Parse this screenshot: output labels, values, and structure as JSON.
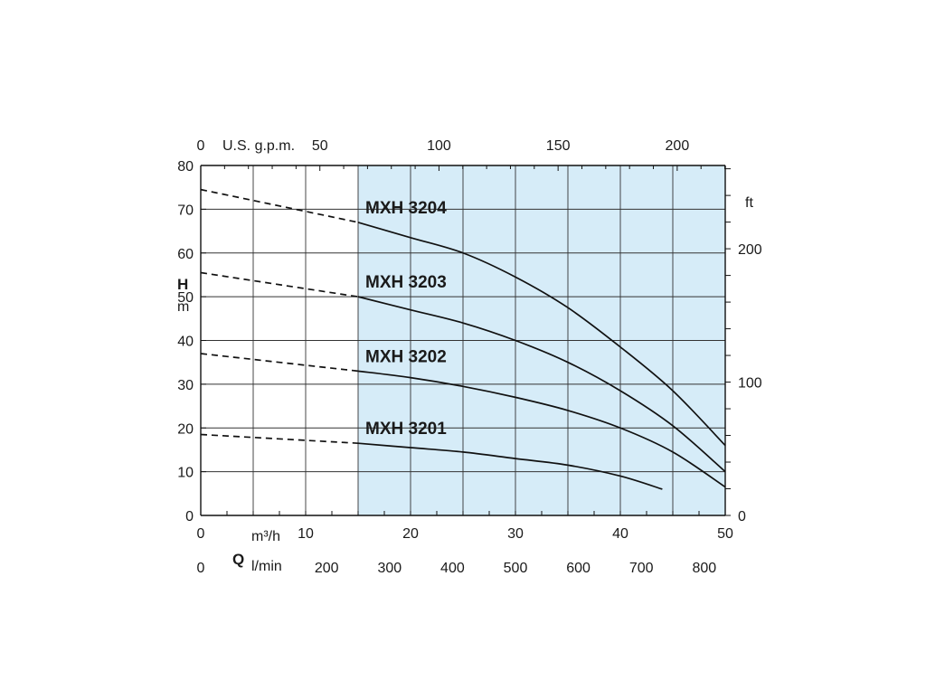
{
  "chart_data": {
    "type": "line",
    "title": "",
    "xlabel": "Q",
    "ylabel": "H",
    "xlim": [
      0,
      50
    ],
    "ylim": [
      0,
      80
    ],
    "grid": true,
    "x_ticks": [
      0,
      10,
      20,
      30,
      40,
      50
    ],
    "y_ticks": [
      0,
      10,
      20,
      30,
      40,
      50,
      60,
      70,
      80
    ],
    "x_unit": "m³/h",
    "y_unit": "m",
    "lmin_axis": {
      "label": "l/min",
      "ticks": [
        0,
        200,
        300,
        400,
        500,
        600,
        700,
        800
      ]
    },
    "gpm_axis": {
      "label": "U.S. g.p.m.",
      "ticks": [
        0,
        50,
        100,
        150,
        200
      ]
    },
    "ft_axis": {
      "label": "ft",
      "ticks": [
        0,
        100,
        200
      ]
    },
    "operating_range": {
      "x_start": 15,
      "x_end": 50,
      "color": "#d6ecf8"
    },
    "series": [
      {
        "name": "MXH 3204",
        "dashed": [
          [
            0,
            74.5
          ],
          [
            15,
            67
          ]
        ],
        "values": [
          [
            15,
            67
          ],
          [
            20,
            63.5
          ],
          [
            25,
            60
          ],
          [
            30,
            54.5
          ],
          [
            35,
            47.5
          ],
          [
            40,
            38.5
          ],
          [
            45,
            28.5
          ],
          [
            50,
            16
          ]
        ]
      },
      {
        "name": "MXH 3203",
        "dashed": [
          [
            0,
            55.5
          ],
          [
            15,
            50
          ]
        ],
        "values": [
          [
            15,
            50
          ],
          [
            20,
            47
          ],
          [
            25,
            44
          ],
          [
            30,
            40
          ],
          [
            35,
            35
          ],
          [
            40,
            28.5
          ],
          [
            45,
            20.5
          ],
          [
            50,
            10
          ]
        ]
      },
      {
        "name": "MXH 3202",
        "dashed": [
          [
            0,
            37
          ],
          [
            15,
            33
          ]
        ],
        "values": [
          [
            15,
            33
          ],
          [
            20,
            31.5
          ],
          [
            25,
            29.5
          ],
          [
            30,
            27
          ],
          [
            35,
            24
          ],
          [
            40,
            20
          ],
          [
            45,
            14.5
          ],
          [
            50,
            6.5
          ]
        ]
      },
      {
        "name": "MXH 3201",
        "dashed": [
          [
            0,
            18.5
          ],
          [
            15,
            16.5
          ]
        ],
        "values": [
          [
            15,
            16.5
          ],
          [
            20,
            15.5
          ],
          [
            25,
            14.5
          ],
          [
            30,
            13
          ],
          [
            35,
            11.5
          ],
          [
            40,
            9
          ],
          [
            44,
            6
          ]
        ]
      }
    ]
  }
}
